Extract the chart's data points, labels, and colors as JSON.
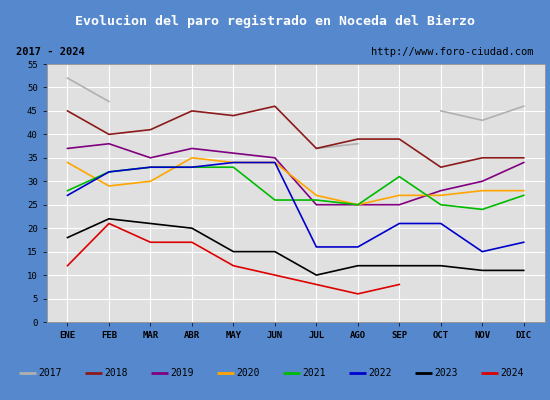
{
  "title": "Evolucion del paro registrado en Noceda del Bierzo",
  "title_color": "#ffffff",
  "title_bg_color": "#4472c4",
  "subtitle_left": "2017 - 2024",
  "subtitle_right": "http://www.foro-ciudad.com",
  "months": [
    "ENE",
    "FEB",
    "MAR",
    "ABR",
    "MAY",
    "JUN",
    "JUL",
    "AGO",
    "SEP",
    "OCT",
    "NOV",
    "DIC"
  ],
  "ylim": [
    0,
    55
  ],
  "yticks": [
    0,
    5,
    10,
    15,
    20,
    25,
    30,
    35,
    40,
    45,
    50,
    55
  ],
  "series": {
    "2017": {
      "color": "#b0b0b0",
      "data": [
        52,
        47,
        null,
        45,
        null,
        null,
        37,
        38,
        null,
        45,
        43,
        46
      ]
    },
    "2018": {
      "color": "#8b1a1a",
      "data": [
        45,
        40,
        41,
        45,
        44,
        46,
        37,
        39,
        39,
        33,
        35,
        35
      ]
    },
    "2019": {
      "color": "#800080",
      "data": [
        37,
        38,
        35,
        37,
        36,
        35,
        25,
        25,
        25,
        28,
        30,
        34
      ]
    },
    "2020": {
      "color": "#ffa500",
      "data": [
        34,
        29,
        30,
        35,
        34,
        34,
        27,
        25,
        27,
        27,
        28,
        28
      ]
    },
    "2021": {
      "color": "#00bb00",
      "data": [
        28,
        32,
        33,
        33,
        33,
        26,
        26,
        25,
        31,
        25,
        24,
        27
      ]
    },
    "2022": {
      "color": "#0000cc",
      "data": [
        27,
        32,
        33,
        33,
        34,
        34,
        16,
        16,
        21,
        21,
        15,
        17
      ]
    },
    "2023": {
      "color": "#000000",
      "data": [
        18,
        22,
        21,
        20,
        15,
        15,
        10,
        12,
        12,
        12,
        11,
        11
      ]
    },
    "2024": {
      "color": "#dd0000",
      "data": [
        12,
        21,
        17,
        17,
        12,
        10,
        8,
        6,
        8,
        null,
        null,
        null
      ]
    }
  },
  "plot_bg": "#e0e0e0",
  "grid_color": "#ffffff",
  "subtitle_bg": "#d4d4d4",
  "legend_bg": "#d4d4d4",
  "fig_bg": "#5588cc"
}
